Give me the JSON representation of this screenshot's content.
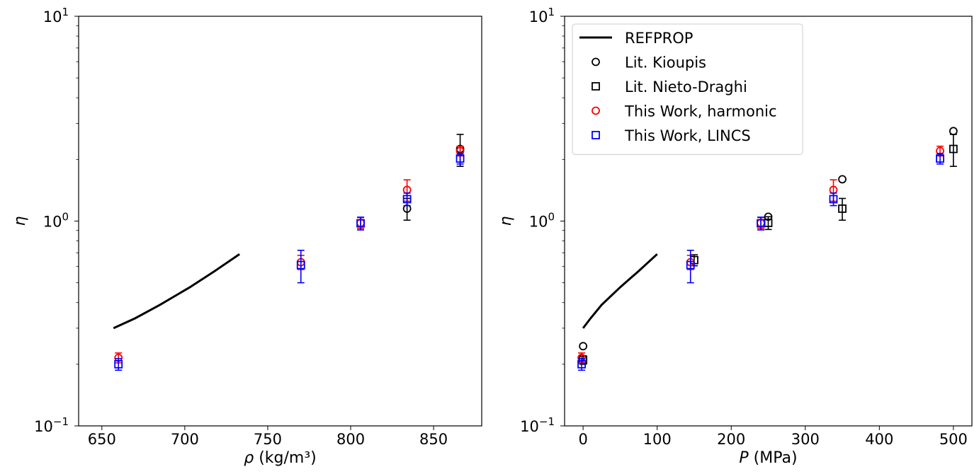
{
  "chart_data": [
    {
      "type": "scatter",
      "title": "",
      "xlabel": "ρ (kg/m³)",
      "ylabel": "η",
      "xlim": [
        636,
        879
      ],
      "ylim": [
        0.1,
        10
      ],
      "yscale": "log",
      "x_ticks": [
        650,
        700,
        750,
        800,
        850
      ],
      "y_ticks": [
        {
          "value": 0.1,
          "base": "10",
          "exp": "−1"
        },
        {
          "value": 1,
          "base": "10",
          "exp": "0"
        },
        {
          "value": 10,
          "base": "10",
          "exp": "1"
        }
      ],
      "legend": null,
      "series": [
        {
          "name": "REFPROP",
          "style": "line",
          "color": "#000000",
          "points": [
            [
              657,
              0.3
            ],
            [
              670,
              0.335
            ],
            [
              685,
              0.39
            ],
            [
              703,
              0.475
            ],
            [
              718,
              0.57
            ],
            [
              733,
              0.69
            ]
          ]
        },
        {
          "name": "Lit. Kioupis",
          "style": "circle-marker",
          "color": "#000000",
          "points": [
            [
              834,
              1.15,
              0.14
            ],
            [
              866,
              2.25,
              0.4
            ]
          ]
        },
        {
          "name": "This Work, harmonic",
          "style": "circle-marker",
          "color": "#ff0000",
          "points": [
            [
              660,
              0.215,
              0.012
            ],
            [
              770,
              0.63,
              0.05
            ],
            [
              806,
              0.98,
              0.06
            ],
            [
              834,
              1.42,
              0.17
            ],
            [
              866,
              2.2,
              0.12
            ]
          ]
        },
        {
          "name": "This Work, LINCS",
          "style": "square-marker",
          "color": "#0000ff",
          "points": [
            [
              660,
              0.2,
              0.013
            ],
            [
              770,
              0.61,
              0.11
            ],
            [
              806,
              0.975,
              0.07
            ],
            [
              834,
              1.28,
              0.09
            ],
            [
              866,
              2.02,
              0.12
            ]
          ]
        }
      ]
    },
    {
      "type": "scatter",
      "title": "",
      "xlabel": "P (MPa)",
      "ylabel": "η",
      "xlim": [
        -25,
        525
      ],
      "ylim": [
        0.1,
        10
      ],
      "yscale": "log",
      "x_ticks": [
        0,
        100,
        200,
        300,
        400,
        500
      ],
      "y_ticks": [
        {
          "value": 0.1,
          "base": "10",
          "exp": "−1"
        },
        {
          "value": 1,
          "base": "10",
          "exp": "0"
        },
        {
          "value": 10,
          "base": "10",
          "exp": "1"
        }
      ],
      "legend": {
        "placement": "top-left",
        "entries": [
          {
            "label": "REFPROP",
            "marker": "line",
            "color": "#000000"
          },
          {
            "label": "Lit. Kioupis",
            "marker": "circle",
            "color": "#000000"
          },
          {
            "label": "Lit. Nieto-Draghi",
            "marker": "square",
            "color": "#000000"
          },
          {
            "label": "This Work, harmonic",
            "marker": "circle",
            "color": "#ff0000"
          },
          {
            "label": "This Work, LINCS",
            "marker": "square",
            "color": "#0000ff"
          }
        ]
      },
      "series": [
        {
          "name": "REFPROP",
          "style": "line",
          "color": "#000000",
          "points": [
            [
              0,
              0.3
            ],
            [
              10,
              0.335
            ],
            [
              25,
              0.39
            ],
            [
              50,
              0.475
            ],
            [
              75,
              0.57
            ],
            [
              100,
              0.69
            ]
          ]
        },
        {
          "name": "Lit. Kioupis",
          "style": "circle-marker",
          "color": "#000000",
          "points": [
            [
              0,
              0.245,
              0
            ],
            [
              250,
              1.05,
              0
            ],
            [
              350,
              1.6,
              0
            ],
            [
              500,
              2.75,
              0
            ]
          ]
        },
        {
          "name": "Lit. Nieto-Draghi",
          "style": "square-marker",
          "color": "#000000",
          "points": [
            [
              0,
              0.21,
              0.01
            ],
            [
              150,
              0.645,
              0.04
            ],
            [
              250,
              0.98,
              0.07
            ],
            [
              350,
              1.15,
              0.14
            ],
            [
              500,
              2.25,
              0.4
            ]
          ]
        },
        {
          "name": "This Work, harmonic",
          "style": "circle-marker",
          "color": "#ff0000",
          "points": [
            [
              -2,
              0.215,
              0.012
            ],
            [
              145,
              0.63,
              0.05
            ],
            [
              240,
              0.98,
              0.06
            ],
            [
              338,
              1.42,
              0.17
            ],
            [
              482,
              2.2,
              0.12
            ]
          ]
        },
        {
          "name": "This Work, LINCS",
          "style": "square-marker",
          "color": "#0000ff",
          "points": [
            [
              -2,
              0.2,
              0.013
            ],
            [
              145,
              0.61,
              0.11
            ],
            [
              240,
              0.975,
              0.07
            ],
            [
              338,
              1.28,
              0.09
            ],
            [
              482,
              2.02,
              0.12
            ]
          ]
        }
      ]
    }
  ]
}
